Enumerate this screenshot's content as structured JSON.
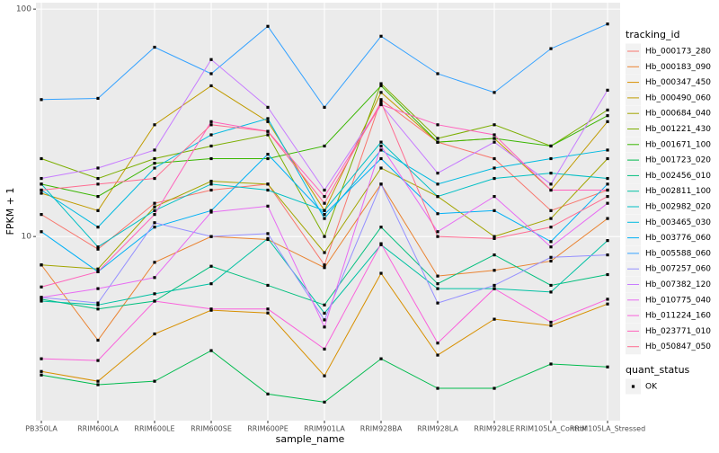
{
  "chart_data": {
    "type": "line",
    "log_scale_y": true,
    "grid": true,
    "x_label": "sample_name",
    "y_label": "FPKM + 1",
    "legend_title": "tracking_id",
    "shape_legend": {
      "title": "quant_status",
      "labels": [
        "OK"
      ]
    },
    "categories": [
      "PB350LA",
      "RRIM600LA",
      "RRIM600LE",
      "RRIM600SE",
      "RRIM600PE",
      "RRIM901LA",
      "RRIM928BA",
      "RRIM928LA",
      "RRIM928LE",
      "RRIM105LA_Control",
      "RRIM105LA_Stressed"
    ],
    "ylim": [
      1.55,
      106.7
    ],
    "yticks": [
      10,
      100
    ],
    "series": [
      {
        "name": "Hb_000173_280",
        "color": "#F8766D",
        "values": [
          12.5,
          8.8,
          14,
          16,
          17,
          7.5,
          40,
          26,
          22,
          13,
          16
        ]
      },
      {
        "name": "Hb_000183_090",
        "color": "#EA8331",
        "values": [
          7.5,
          3.5,
          7.7,
          10,
          9.7,
          7.3,
          17,
          6.7,
          7.1,
          7.8,
          12
        ]
      },
      {
        "name": "Hb_000347_450",
        "color": "#D89000",
        "values": [
          2.55,
          2.31,
          3.73,
          4.74,
          4.61,
          2.44,
          6.89,
          3.01,
          4.33,
          4.06,
          5.05
        ]
      },
      {
        "name": "Hb_000490_060",
        "color": "#C09B00",
        "values": [
          15.5,
          13,
          31,
          46,
          32,
          13,
          43,
          26,
          27,
          16,
          32
        ]
      },
      {
        "name": "Hb_000684_040",
        "color": "#A3A500",
        "values": [
          7.5,
          7.2,
          13.5,
          17.5,
          17,
          8.5,
          20,
          15,
          10,
          12,
          22
        ]
      },
      {
        "name": "Hb_001221_430",
        "color": "#7CAE00",
        "values": [
          22,
          18,
          22,
          25,
          28,
          10,
          47,
          27,
          31,
          25,
          36
        ]
      },
      {
        "name": "Hb_001671_100",
        "color": "#39B600",
        "values": [
          17,
          15,
          21,
          22,
          22,
          25,
          46,
          26,
          27,
          25,
          34
        ]
      },
      {
        "name": "Hb_001723_020",
        "color": "#00BB4E",
        "values": [
          2.46,
          2.23,
          2.31,
          3.15,
          2.03,
          1.87,
          2.9,
          2.15,
          2.15,
          2.75,
          2.67
        ]
      },
      {
        "name": "Hb_002456_010",
        "color": "#00BF7D",
        "values": [
          5.3,
          4.8,
          5.2,
          7.4,
          6.1,
          5.0,
          11,
          6.2,
          8.3,
          6.1,
          6.8
        ]
      },
      {
        "name": "Hb_002811_100",
        "color": "#00C1A3",
        "values": [
          5.2,
          5.0,
          5.6,
          6.2,
          9.8,
          4.6,
          9.2,
          5.9,
          5.9,
          5.7,
          9.6
        ]
      },
      {
        "name": "Hb_002982_020",
        "color": "#00BFC4",
        "values": [
          17,
          9,
          13,
          17,
          16,
          13,
          26,
          15,
          18,
          19,
          18
        ]
      },
      {
        "name": "Hb_003465_030",
        "color": "#00BAE0",
        "values": [
          16,
          11,
          20,
          28,
          33,
          12,
          24,
          17,
          20,
          22,
          24
        ]
      },
      {
        "name": "Hb_003776_060",
        "color": "#00B0F6",
        "values": [
          10.5,
          7,
          11,
          13,
          23,
          12.5,
          22,
          12.6,
          13,
          9.5,
          17
        ]
      },
      {
        "name": "Hb_005588_060",
        "color": "#35A2FF",
        "values": [
          40,
          40.5,
          68,
          52,
          84,
          37,
          76,
          52,
          43,
          67,
          86
        ]
      },
      {
        "name": "Hb_007257_060",
        "color": "#9590FF",
        "values": [
          5.4,
          5.1,
          11.5,
          10,
          10.3,
          4.3,
          17,
          5.1,
          6.1,
          8.1,
          8.3
        ]
      },
      {
        "name": "Hb_007382_120",
        "color": "#C77CFF",
        "values": [
          18,
          20,
          24,
          60,
          37,
          16,
          38,
          19,
          26,
          17,
          44
        ]
      },
      {
        "name": "Hb_010775_040",
        "color": "#E76BF3",
        "values": [
          5.4,
          5.9,
          6.6,
          12.8,
          13.6,
          4.0,
          25,
          10.5,
          15,
          9,
          14
        ]
      },
      {
        "name": "Hb_011224_160",
        "color": "#FA62DB",
        "values": [
          2.9,
          2.85,
          5.2,
          4.8,
          4.8,
          3.2,
          9.3,
          3.4,
          5.9,
          4.2,
          5.3
        ]
      },
      {
        "name": "Hb_023771_010",
        "color": "#FF62BC",
        "values": [
          6,
          7,
          12.5,
          32,
          29,
          15,
          38,
          31,
          28,
          16,
          16
        ]
      },
      {
        "name": "Hb_050847_050",
        "color": "#FF6C91",
        "values": [
          16,
          17,
          18,
          31,
          29,
          14,
          39,
          10,
          9.8,
          11,
          15
        ]
      }
    ]
  }
}
